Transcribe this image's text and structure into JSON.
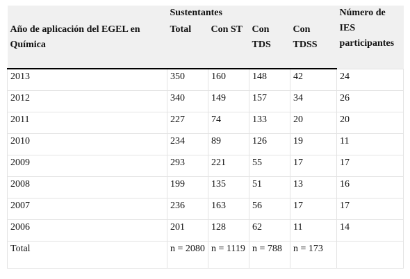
{
  "header": {
    "group_sustentantes": "Sustentantes",
    "year_col": "Año de aplicación del EGEL en Química",
    "total": "Total",
    "con_st": "Con ST",
    "con_tds": "Con TDS",
    "con_tdss": "Con TDSS",
    "ies": "Número de IES participantes"
  },
  "rows": [
    {
      "year": "2013",
      "total": "350",
      "st": "160",
      "tds": "148",
      "tdss": "42",
      "ies": "24"
    },
    {
      "year": "2012",
      "total": "340",
      "st": "149",
      "tds": "157",
      "tdss": "34",
      "ies": "26"
    },
    {
      "year": "2011",
      "total": "227",
      "st": "74",
      "tds": "133",
      "tdss": "20",
      "ies": "20"
    },
    {
      "year": "2010",
      "total": "234",
      "st": "89",
      "tds": "126",
      "tdss": "19",
      "ies": "11"
    },
    {
      "year": "2009",
      "total": "293",
      "st": "221",
      "tds": "55",
      "tdss": "17",
      "ies": "17"
    },
    {
      "year": "2008",
      "total": "199",
      "st": "135",
      "tds": "51",
      "tdss": "13",
      "ies": "16"
    },
    {
      "year": "2007",
      "total": "236",
      "st": "163",
      "tds": "56",
      "tdss": "17",
      "ies": "17"
    },
    {
      "year": "2006",
      "total": "201",
      "st": "128",
      "tds": "62",
      "tdss": "11",
      "ies": "14"
    }
  ],
  "total_row": {
    "label": "Total",
    "total": "n = 2080",
    "st": "n = 1119",
    "tds": "n = 788",
    "tdss": "n = 173",
    "ies": ""
  }
}
